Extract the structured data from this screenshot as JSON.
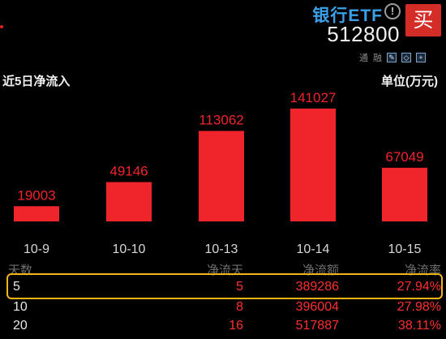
{
  "header": {
    "stock_name": "银行ETF",
    "stock_code": "512800",
    "info_icon": "info-circle-icon",
    "buy_label": "买",
    "toolbar": {
      "items": [
        "通",
        "融"
      ],
      "icons": [
        "edit-icon",
        "chart-icon",
        "add-icon"
      ]
    }
  },
  "section": {
    "title": "近5日净流入",
    "unit": "单位(万元)"
  },
  "chart_data": {
    "type": "bar",
    "title": "近5日净流入",
    "ylabel": "单位(万元)",
    "categories": [
      "10-9",
      "10-10",
      "10-13",
      "10-14",
      "10-15"
    ],
    "values": [
      19003,
      49146,
      113062,
      141027,
      67049
    ],
    "value_labels": [
      "19003",
      "49146",
      "113062",
      "141027",
      "67049"
    ],
    "ylim": [
      0,
      150000
    ],
    "grid": false,
    "bar_color": "#f0252b",
    "label_color": "#f0252b",
    "tick_color": "#d8d8d8"
  },
  "table": {
    "headers": [
      "天数",
      "净流天",
      "净流额",
      "净流率"
    ],
    "rows": [
      {
        "days": "5",
        "inflow_days": "5",
        "amount": "389286",
        "rate": "27.94%"
      },
      {
        "days": "10",
        "inflow_days": "8",
        "amount": "396004",
        "rate": "27.98%"
      },
      {
        "days": "20",
        "inflow_days": "16",
        "amount": "517887",
        "rate": "38.11%"
      }
    ]
  },
  "colors": {
    "background": "#000000",
    "accent_blue": "#3aa0e8",
    "up_red": "#ff3030",
    "highlight": "#f1b517"
  }
}
